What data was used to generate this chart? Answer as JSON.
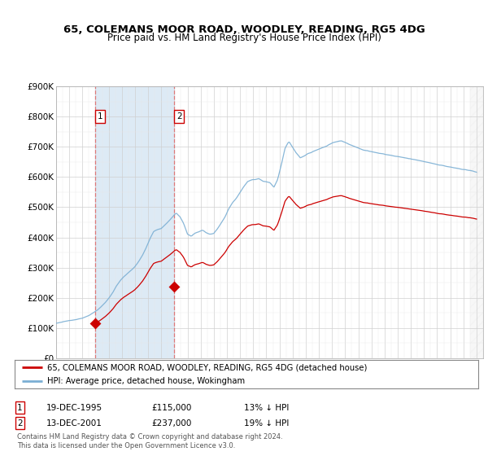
{
  "title": "65, COLEMANS MOOR ROAD, WOODLEY, READING, RG5 4DG",
  "subtitle": "Price paid vs. HM Land Registry's House Price Index (HPI)",
  "legend_line1": "65, COLEMANS MOOR ROAD, WOODLEY, READING, RG5 4DG (detached house)",
  "legend_line2": "HPI: Average price, detached house, Wokingham",
  "footnote": "Contains HM Land Registry data © Crown copyright and database right 2024.\nThis data is licensed under the Open Government Licence v3.0.",
  "sale1_date": "19-DEC-1995",
  "sale1_price": 115000,
  "sale1_note": "13% ↓ HPI",
  "sale2_date": "13-DEC-2001",
  "sale2_price": 237000,
  "sale2_note": "19% ↓ HPI",
  "sale1_x": 1995.96,
  "sale2_x": 2001.96,
  "hpi_color": "#7bafd4",
  "price_color": "#cc0000",
  "vline_color": "#e06060",
  "background_color": "#ffffff",
  "shade_color": "#ddeaf5",
  "hatch_color": "#e8e8e8",
  "ylim": [
    0,
    900000
  ],
  "xlim": [
    1993.0,
    2025.5
  ],
  "yticks": [
    0,
    100000,
    200000,
    300000,
    400000,
    500000,
    600000,
    700000,
    800000,
    900000
  ],
  "ytick_labels": [
    "£0",
    "£100K",
    "£200K",
    "£300K",
    "£400K",
    "£500K",
    "£600K",
    "£700K",
    "£800K",
    "£900K"
  ],
  "xticks": [
    1993,
    1994,
    1995,
    1996,
    1997,
    1998,
    1999,
    2000,
    2001,
    2002,
    2003,
    2004,
    2005,
    2006,
    2007,
    2008,
    2009,
    2010,
    2011,
    2012,
    2013,
    2014,
    2015,
    2016,
    2017,
    2018,
    2019,
    2020,
    2021,
    2022,
    2023,
    2024,
    2025
  ],
  "hpi_base_values": [
    115000,
    117000,
    119500,
    122000,
    124500,
    127000,
    130000,
    133000,
    138000,
    144000,
    152000,
    161000,
    172000,
    185000,
    200000,
    218000,
    240000,
    258000,
    272000,
    283000,
    293000,
    305000,
    322000,
    343000,
    368000,
    398000,
    422000,
    428000,
    432000,
    444000,
    457000,
    471000,
    484000,
    471000,
    448000,
    413000,
    406000,
    416000,
    421000,
    427000,
    418000,
    413000,
    416000,
    432000,
    451000,
    471000,
    498000,
    518000,
    532000,
    551000,
    571000,
    587000,
    592000,
    593000,
    596000,
    588000,
    586000,
    583000,
    568000,
    593000,
    643000,
    697000,
    718000,
    699000,
    679000,
    664000,
    669000,
    678000,
    682000,
    688000,
    693000,
    698000,
    703000,
    710000,
    715000,
    718000,
    720000,
    716000,
    710000,
    705000,
    700000,
    695000,
    690000,
    688000,
    685000,
    683000,
    680000,
    678000,
    675000,
    673000,
    670000,
    668000,
    665000,
    663000,
    660000,
    658000,
    655000,
    653000,
    650000,
    648000,
    645000,
    643000,
    640000,
    638000,
    635000,
    633000,
    630000,
    628000,
    625000,
    623000,
    620000,
    618000,
    615000
  ],
  "hatch_start": 2024.5,
  "sale1_hpi_at_purchase": 132000,
  "sale2_hpi_at_purchase": 293000
}
